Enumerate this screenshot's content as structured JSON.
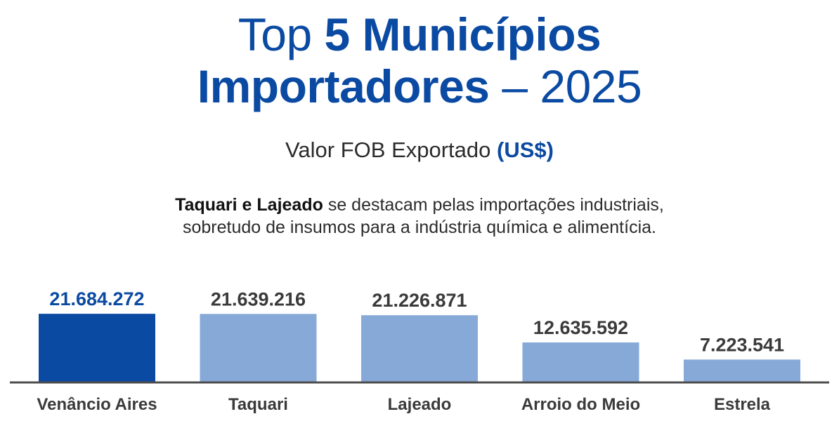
{
  "title": {
    "part1": "Top ",
    "part2": "5 Municípios",
    "part3": "Importadores",
    "part4": " – 2025"
  },
  "subtitle": {
    "text": "Valor FOB Exportado ",
    "unit": "(US$)"
  },
  "note": {
    "highlight": "Taquari e Lajeado",
    "rest": " se destacam pelas importações industriais, sobretudo de insumos para a indústria química e alimentícia."
  },
  "colors": {
    "title": "#0b4aa2",
    "highlight_bar": "#0b4aa2",
    "bar": "#86a9d8",
    "highlight_label": "#0b4aa2",
    "label": "#3a3a3a",
    "axis": "#4d4d4d"
  },
  "chart_data": {
    "type": "bar",
    "categories": [
      "Venâncio Aires",
      "Taquari",
      "Lajeado",
      "Arroio do Meio",
      "Estrela"
    ],
    "values": [
      21684272,
      21639216,
      21226871,
      12635592,
      7223541
    ],
    "value_labels": [
      "21.684.272",
      "21.639.216",
      "21.226.871",
      "12.635.592",
      "7.223.541"
    ],
    "highlighted_index": 0,
    "ylim": [
      0,
      22000000
    ],
    "grid": false,
    "legend": "none"
  }
}
